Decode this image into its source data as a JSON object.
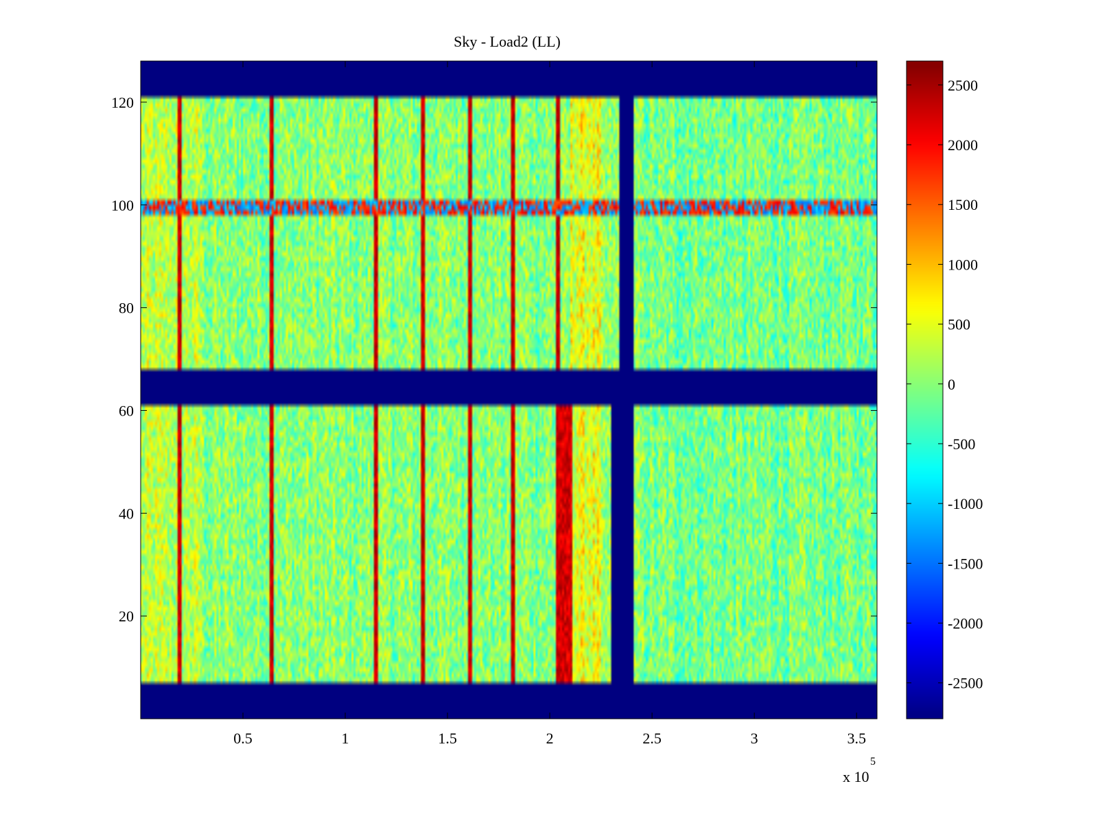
{
  "chart_data": {
    "type": "heatmap",
    "title": "Sky - Load2 (LL)",
    "xlabel": "",
    "ylabel": "",
    "x_multiplier_label": "x 10",
    "x_multiplier_exponent": "5",
    "xlim": [
      0,
      3.6
    ],
    "ylim": [
      0,
      128
    ],
    "x_ticks": [
      0.5,
      1,
      1.5,
      2,
      2.5,
      3,
      3.5
    ],
    "x_tick_labels": [
      "0.5",
      "1",
      "1.5",
      "2",
      "2.5",
      "3",
      "3.5"
    ],
    "y_ticks": [
      20,
      40,
      60,
      80,
      100,
      120
    ],
    "y_tick_labels": [
      "20",
      "40",
      "60",
      "80",
      "100",
      "120"
    ],
    "colormap": "jet",
    "clim": [
      -2800,
      2700
    ],
    "colorbar_ticks": [
      2500,
      2000,
      1500,
      1000,
      500,
      0,
      -500,
      -1000,
      -1500,
      -2000,
      -2500
    ],
    "colorbar_tick_labels": [
      "2500",
      "2000",
      "1500",
      "1000",
      "500",
      "0",
      "-500",
      "-1000",
      "-1500",
      "-2000",
      "-2500"
    ],
    "masked_value": -2800,
    "masked_row_bands": [
      [
        0,
        7
      ],
      [
        61,
        68
      ],
      [
        121,
        128
      ]
    ],
    "masked_column_band_upper": {
      "rows": [
        68,
        121
      ],
      "x": [
        2.34,
        2.41
      ]
    },
    "masked_column_band_lower": {
      "rows": [
        7,
        61
      ],
      "x": [
        2.3,
        2.41
      ]
    },
    "strong_columns_x": [
      0.19,
      0.64,
      1.15,
      1.38,
      1.61,
      1.82,
      2.04
    ],
    "hot_region_lower": {
      "rows": [
        7,
        61
      ],
      "x": [
        2.04,
        2.11
      ],
      "value": 2500
    },
    "hot_row_band": {
      "rows": [
        98,
        101
      ],
      "note": "elevated values across x"
    },
    "background_value_range": [
      -800,
      900
    ]
  }
}
